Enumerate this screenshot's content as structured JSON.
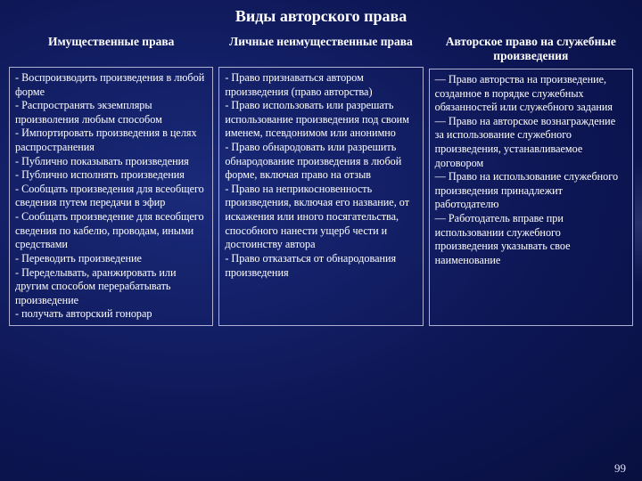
{
  "title": "Виды авторского права",
  "columns": [
    {
      "header": "Имущественные права",
      "body": "- Воспроизводить произведения в любой форме\n- Распространять экземпляры произволения любым способом\n- Импортировать произведения в целях распространения\n- Публично показывать произведения\n- Публично исполнять произведения\n- Сообщать произведения для всеобщего сведения путем передачи в эфир\n- Сообщать произведение для всеобщего сведения по кабелю, проводам, иными средствами\n- Переводить произведение\n- Переделывать, аранжировать или другим способом перерабатывать произведение\n- получать авторский гонорар"
    },
    {
      "header": "Личные неимущественные права",
      "body": "- Право признаваться автором произведения (право авторства)\n- Право использовать или разрешать использование произведения под своим именем, псевдонимом или анонимно\n- Право обнародовать или разрешить обнародование произведения в любой форме, включая право на отзыв\n- Право на неприкосновенность произведения, включая его название, от искажения или иного посягательства, способного нанести ущерб чести и достоинству автора\n- Право отказаться от обнародования произведения"
    },
    {
      "header": "Авторское право на служебные произведения",
      "body": "— Право авторства на произведение, созданное в порядке служебных обязанностей или служебного задания\n— Право на авторское вознаграждение за использование служебного произведения, устанавливаемое договором\n— Право на использование служебного произведения принадлежит работодателю\n— Работодатель вправе при использовании служебного произведения указывать свое наименование"
    }
  ],
  "page_number": "99"
}
